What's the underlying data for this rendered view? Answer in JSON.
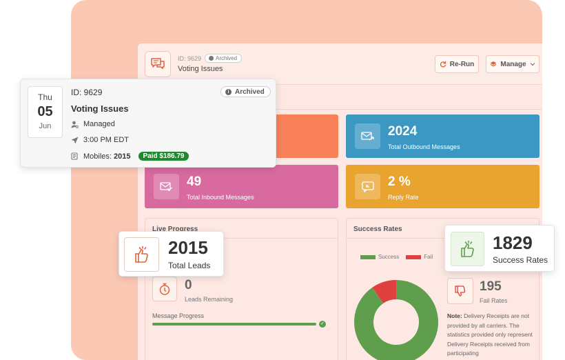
{
  "app": {
    "header": {
      "id_text": "ID: 9629",
      "badge": "Archived",
      "title": "Voting Issues",
      "rerun_label": "Re-Run",
      "manage_label": "Manage"
    },
    "stats": [
      {
        "value": "",
        "label": ""
      },
      {
        "value": "2024",
        "label": "Total Outbound Messages"
      },
      {
        "value": "49",
        "label": "Total Inbound Messages"
      },
      {
        "value": "2 %",
        "label": "Reply Rate"
      }
    ],
    "live_progress": {
      "title": "Live Progress",
      "leads_remaining_value": "0",
      "leads_remaining_label": "Leads Remaining",
      "message_progress_label": "Message Progress",
      "message_progress_fraction": 1.0
    },
    "success_rates": {
      "title": "Success Rates",
      "legend": [
        {
          "label": "Success",
          "color": "#5f9e4c"
        },
        {
          "label": "Fail",
          "color": "#e04040"
        }
      ],
      "fail_value": "195",
      "fail_label": "Fail Rates",
      "note_label": "Note:",
      "note_text": " Delivery Receipts are not provided by all carriers. The statistics provided only represent Delivery Receipts received from participating"
    }
  },
  "event_card": {
    "dow": "Thu",
    "day": "05",
    "month": "Jun",
    "id_text": "ID: 9629",
    "badge": "Archived",
    "title": "Voting Issues",
    "managed": "Managed",
    "time": "3:00 PM EDT",
    "mobiles_label": "Mobiles:",
    "mobiles_value": "2015",
    "paid": "Paid $186.79"
  },
  "leads_card": {
    "value": "2015",
    "label": "Total Leads"
  },
  "success_card": {
    "value": "1829",
    "label": "Success Rates"
  },
  "chart_data": {
    "type": "pie",
    "categories": [
      "Success",
      "Fail"
    ],
    "values": [
      1829,
      195
    ],
    "colors": [
      "#5f9e4c",
      "#e04040"
    ]
  }
}
